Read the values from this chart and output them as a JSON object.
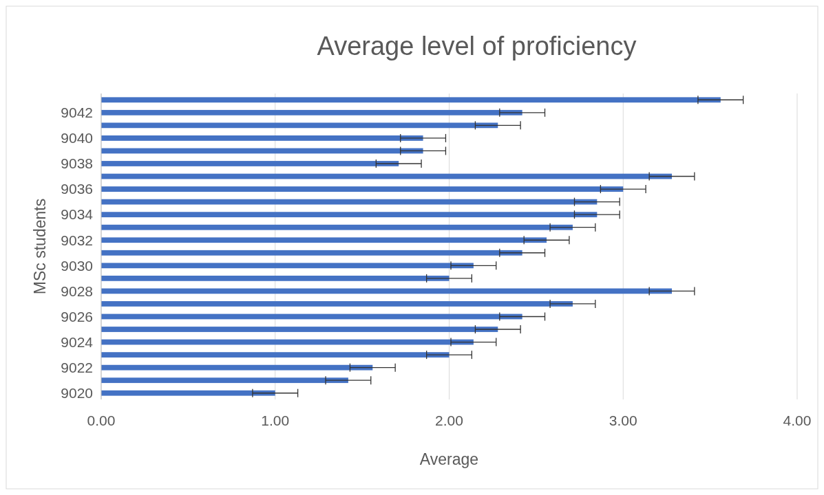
{
  "chart_data": {
    "type": "bar",
    "orientation": "horizontal",
    "title": "Average level of proficiency",
    "xlabel": "Average",
    "ylabel": "MSc students",
    "categories": [
      null,
      "9042",
      null,
      "9040",
      null,
      "9038",
      null,
      "9036",
      null,
      "9034",
      null,
      "9032",
      null,
      "9030",
      null,
      "9028",
      null,
      "9026",
      null,
      "9024",
      null,
      "9022",
      null,
      "9020"
    ],
    "values": [
      3.56,
      2.42,
      2.28,
      1.85,
      1.85,
      1.71,
      3.28,
      3.0,
      2.85,
      2.85,
      2.71,
      2.56,
      2.42,
      2.14,
      2.0,
      3.28,
      2.71,
      2.42,
      2.28,
      2.14,
      2.0,
      1.56,
      1.42,
      1.0
    ],
    "errors": [
      0.13,
      0.13,
      0.13,
      0.13,
      0.13,
      0.13,
      0.13,
      0.13,
      0.13,
      0.13,
      0.13,
      0.13,
      0.13,
      0.13,
      0.13,
      0.13,
      0.13,
      0.13,
      0.13,
      0.13,
      0.13,
      0.13,
      0.13,
      0.13
    ],
    "color": "#4472c4",
    "xlim": [
      0,
      4
    ],
    "xticks": [
      {
        "value": 0,
        "label": "0.00"
      },
      {
        "value": 1,
        "label": "1.00"
      },
      {
        "value": 2,
        "label": "2.00"
      },
      {
        "value": 3,
        "label": "3.00"
      },
      {
        "value": 4,
        "label": "4.00"
      }
    ],
    "grid": "x"
  }
}
